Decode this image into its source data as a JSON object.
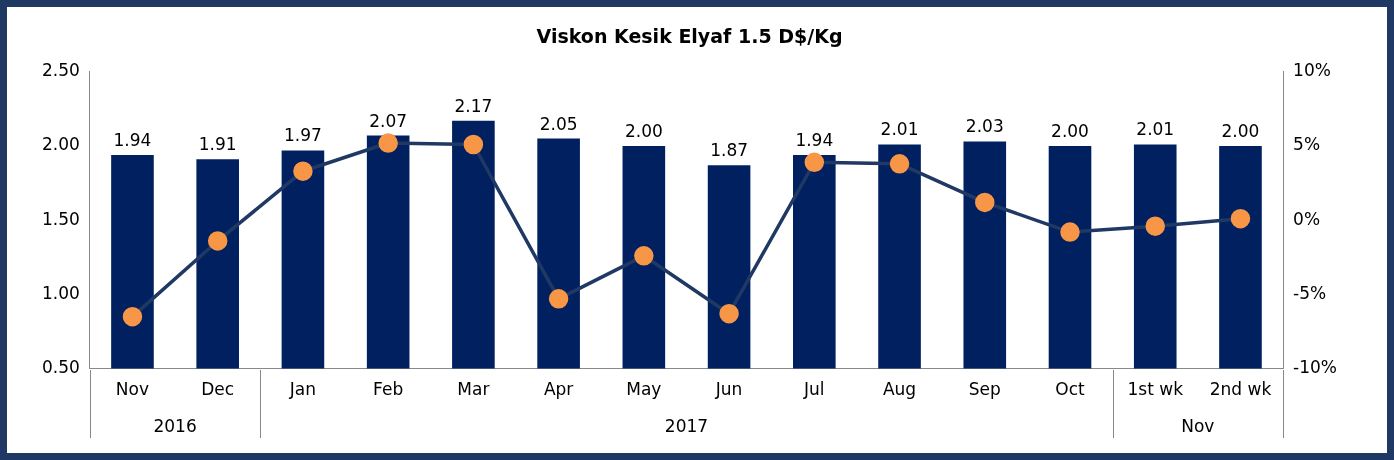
{
  "chart_data": {
    "type": "bar",
    "title": "Viskon Kesik Elyaf 1.5 D$/Kg",
    "categories": [
      "Nov",
      "Dec",
      "Jan",
      "Feb",
      "Mar",
      "Apr",
      "May",
      "Jun",
      "Jul",
      "Aug",
      "Sep",
      "Oct",
      "1st wk",
      "2nd wk"
    ],
    "series": [
      {
        "color": "#002060",
        "values": [
          1.94,
          1.91,
          1.97,
          2.07,
          2.17,
          2.05,
          2.0,
          1.87,
          1.94,
          2.01,
          2.03,
          2.0,
          2.01,
          2.0
        ],
        "value_labels": [
          "1.94",
          "1.91",
          "1.97",
          "2.07",
          "2.17",
          "2.05",
          "2.00",
          "1.87",
          "1.94",
          "2.01",
          "2.03",
          "2.00",
          "2.01",
          "2.00"
        ]
      },
      {
        "type": "line",
        "axis": "y2",
        "color": "#1f3864",
        "marker": "circle",
        "values": [
          -6.5,
          -1.4,
          3.3,
          5.2,
          5.1,
          -5.3,
          -2.4,
          -6.3,
          3.9,
          3.8,
          1.2,
          -0.8,
          -0.4,
          0.1
        ]
      }
    ],
    "ylim": [
      0.5,
      2.5
    ],
    "yticks": [
      {
        "value": 0.5,
        "label": "0.50"
      },
      {
        "value": 1,
        "label": "1.00"
      },
      {
        "value": 1.5,
        "label": "1.50"
      },
      {
        "value": 2,
        "label": "2.00"
      },
      {
        "value": 2.5,
        "label": "2.50"
      }
    ],
    "y2lim": [
      -10,
      10
    ],
    "y2ticks": [
      {
        "value": -10,
        "label": "-10%"
      },
      {
        "value": -5,
        "label": "-5%"
      },
      {
        "value": 0,
        "label": "0%"
      },
      {
        "value": 5,
        "label": "5%"
      },
      {
        "value": 10,
        "label": "10%"
      }
    ],
    "annotations": [
      "2016",
      "2017",
      "Nov"
    ],
    "grid": false,
    "legend": false
  }
}
